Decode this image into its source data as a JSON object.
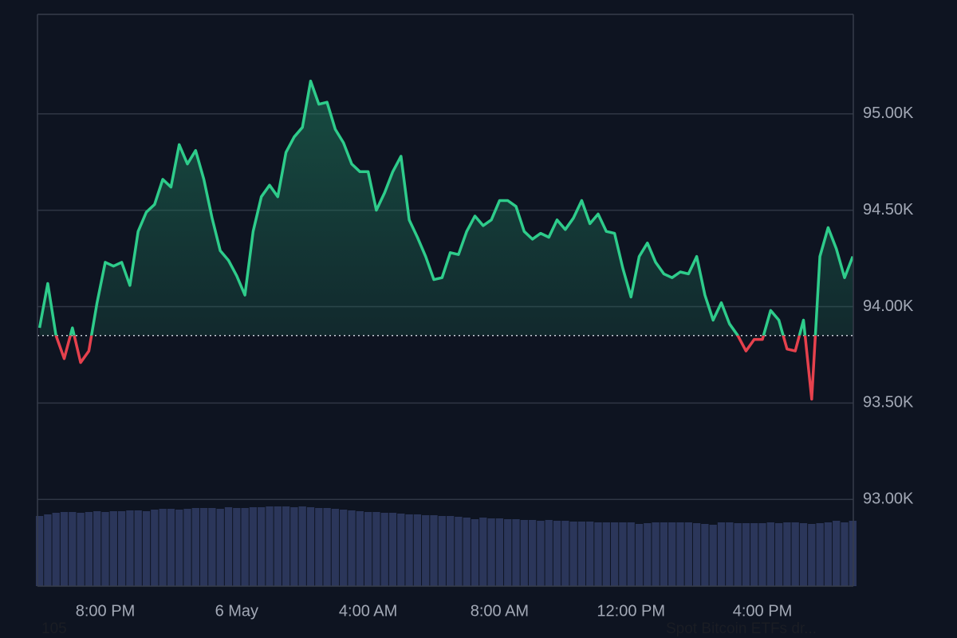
{
  "chart_data": {
    "type": "line",
    "categories": [
      null,
      null,
      null,
      null,
      null,
      null,
      null,
      null,
      "8:00 PM",
      null,
      null,
      null,
      null,
      null,
      null,
      null,
      null,
      null,
      null,
      null,
      null,
      null,
      null,
      null,
      "6 May",
      null,
      null,
      null,
      null,
      null,
      null,
      null,
      null,
      null,
      null,
      null,
      null,
      null,
      null,
      null,
      "4:00 AM",
      null,
      null,
      null,
      null,
      null,
      null,
      null,
      null,
      null,
      null,
      null,
      null,
      null,
      null,
      null,
      "8:00 AM",
      null,
      null,
      null,
      null,
      null,
      null,
      null,
      null,
      null,
      null,
      null,
      null,
      null,
      null,
      null,
      "12:00 PM",
      null,
      null,
      null,
      null,
      null,
      null,
      null,
      null,
      null,
      null,
      null,
      null,
      null,
      null,
      null,
      "4:00 PM",
      null,
      null,
      null,
      null,
      null,
      null,
      null,
      null,
      null,
      null,
      null
    ],
    "values": [
      93890,
      94120,
      93850,
      93730,
      93890,
      93710,
      93770,
      94020,
      94230,
      94210,
      94230,
      94110,
      94390,
      94490,
      94530,
      94660,
      94620,
      94840,
      94740,
      94810,
      94660,
      94460,
      94290,
      94240,
      94160,
      94060,
      94390,
      94570,
      94630,
      94570,
      94800,
      94880,
      94930,
      95170,
      95050,
      95060,
      94920,
      94850,
      94740,
      94700,
      94700,
      94500,
      94590,
      94700,
      94780,
      94450,
      94360,
      94260,
      94140,
      94150,
      94280,
      94270,
      94390,
      94470,
      94420,
      94450,
      94550,
      94550,
      94520,
      94390,
      94350,
      94380,
      94360,
      94450,
      94400,
      94460,
      94550,
      94430,
      94480,
      94390,
      94380,
      94200,
      94050,
      94260,
      94330,
      94230,
      94170,
      94150,
      94180,
      94170,
      94260,
      94060,
      93930,
      94020,
      93910,
      93850,
      93770,
      93830,
      93830,
      93980,
      93930,
      93780,
      93770,
      93930,
      93520,
      94260,
      94410,
      94300,
      94150,
      94260
    ],
    "color": "#2ecc8b",
    "down_color": "#e5414d",
    "baseline": 93850,
    "ylim": [
      92550,
      95516
    ],
    "yticks": [
      {
        "value": 93000,
        "label": "93.00K"
      },
      {
        "value": 93500,
        "label": "93.50K"
      },
      {
        "value": 94000,
        "label": "94.00K"
      },
      {
        "value": 94500,
        "label": "94.50K"
      },
      {
        "value": 95000,
        "label": "95.00K"
      }
    ],
    "grid": true,
    "volume": [
      88,
      90,
      92,
      93,
      93,
      92,
      93,
      94,
      93,
      94,
      94,
      95,
      95,
      94,
      96,
      97,
      97,
      96,
      97,
      98,
      98,
      98,
      97,
      99,
      98,
      98,
      99,
      99,
      100,
      100,
      100,
      99,
      100,
      99,
      98,
      98,
      97,
      96,
      95,
      94,
      93,
      93,
      92,
      92,
      91,
      90,
      90,
      89,
      89,
      88,
      88,
      87,
      86,
      84,
      86,
      85,
      85,
      84,
      84,
      83,
      83,
      82,
      83,
      82,
      82,
      81,
      81,
      81,
      80,
      80,
      80,
      80,
      80,
      78,
      79,
      80,
      80,
      80,
      80,
      80,
      79,
      78,
      77,
      80,
      80,
      79,
      79,
      79,
      79,
      80,
      79,
      80,
      80,
      79,
      78,
      79,
      80,
      82,
      80,
      82
    ],
    "volume_color": "#2b365a",
    "y2lim": [
      0,
      717
    ],
    "annotations": [
      "105",
      "Spot Bitcoin ETFs dr..."
    ]
  }
}
